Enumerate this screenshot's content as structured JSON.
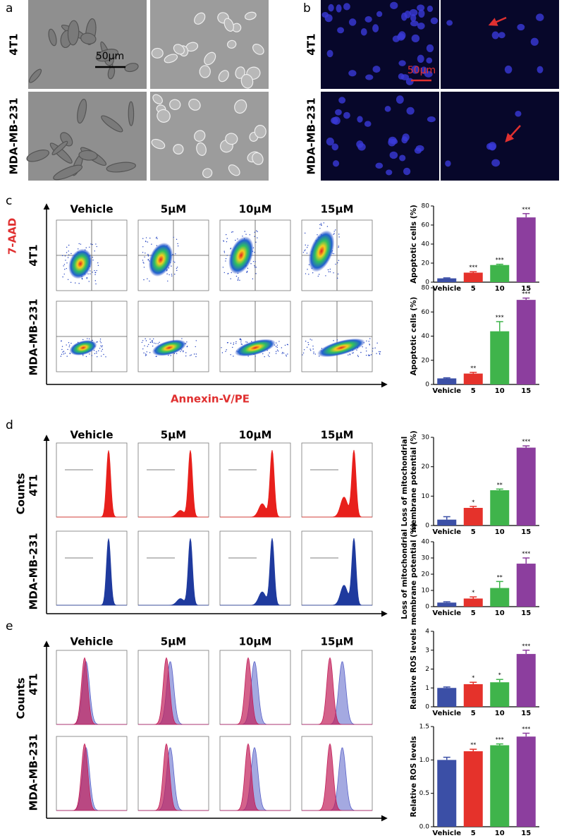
{
  "panels": {
    "a": {
      "label": "a",
      "rows": [
        "4T1",
        "MDA-MB-231"
      ],
      "scale_bar": "50μm"
    },
    "b": {
      "label": "b",
      "rows": [
        "4T1",
        "MDA-MB-231"
      ],
      "scale_bar": "50μm"
    },
    "c": {
      "label": "c",
      "columns": [
        "Vehicle",
        "5μM",
        "10μM",
        "15μM"
      ],
      "rows": [
        "4T1",
        "MDA-MB-231"
      ],
      "y_axis_label": "7-AAD",
      "x_axis_label": "Annexin-V/PE"
    },
    "d": {
      "label": "d",
      "columns": [
        "Vehicle",
        "5μM",
        "10μM",
        "15μM"
      ],
      "rows": [
        "4T1",
        "MDA-MB-231"
      ],
      "y_axis_label": "Counts"
    },
    "e": {
      "label": "e",
      "columns": [
        "Vehicle",
        "5μM",
        "10μM",
        "15μM"
      ],
      "rows": [
        "4T1",
        "MDA-MB-231"
      ],
      "y_axis_label": "Counts"
    }
  },
  "chart_data": [
    {
      "type": "bar",
      "y_label": [
        "Apoptotic cells (%)"
      ],
      "categories": [
        "Vehicle",
        "5",
        "10",
        "15"
      ],
      "values": [
        4,
        10,
        18,
        68
      ],
      "errors": [
        0.5,
        1,
        0.8,
        4
      ],
      "annotations": [
        null,
        "***",
        "***",
        "***"
      ],
      "colors": [
        "#3b4fa6",
        "#e5322b",
        "#3fb44b",
        "#8c3e9e"
      ],
      "ylim": [
        0,
        80
      ],
      "yticks": [
        0,
        20,
        40,
        60,
        80
      ]
    },
    {
      "type": "bar",
      "y_label": [
        "Apoptotic cells (%)"
      ],
      "categories": [
        "Vehicle",
        "5",
        "10",
        "15"
      ],
      "values": [
        5,
        9,
        44,
        70
      ],
      "errors": [
        0.5,
        1,
        8,
        1.5
      ],
      "annotations": [
        null,
        "**",
        "***",
        "***"
      ],
      "colors": [
        "#3b4fa6",
        "#e5322b",
        "#3fb44b",
        "#8c3e9e"
      ],
      "ylim": [
        0,
        80
      ],
      "yticks": [
        0,
        20,
        40,
        60,
        80
      ]
    },
    {
      "type": "bar",
      "y_label": [
        "Loss of mitochondrial",
        "membrane potential (%)"
      ],
      "categories": [
        "Vehicle",
        "5",
        "10",
        "15"
      ],
      "values": [
        2,
        6,
        12,
        26.5
      ],
      "errors": [
        1,
        0.5,
        0.4,
        0.6
      ],
      "annotations": [
        null,
        "*",
        "**",
        "***"
      ],
      "colors": [
        "#3b4fa6",
        "#e5322b",
        "#3fb44b",
        "#8c3e9e"
      ],
      "ylim": [
        0,
        30
      ],
      "yticks": [
        0,
        10,
        20,
        30
      ]
    },
    {
      "type": "bar",
      "y_label": [
        "Loss of mitochondrial",
        "membrane potential (%)"
      ],
      "categories": [
        "Vehicle",
        "5",
        "10",
        "15"
      ],
      "values": [
        2.5,
        5,
        11.5,
        26.5
      ],
      "errors": [
        0.5,
        1,
        4,
        3.5
      ],
      "annotations": [
        null,
        "*",
        "**",
        "***"
      ],
      "colors": [
        "#3b4fa6",
        "#e5322b",
        "#3fb44b",
        "#8c3e9e"
      ],
      "ylim": [
        0,
        40
      ],
      "yticks": [
        0,
        10,
        20,
        30,
        40
      ]
    },
    {
      "type": "bar",
      "y_label": [
        "Relative ROS levels"
      ],
      "categories": [
        "Vehicle",
        "5",
        "10",
        "15"
      ],
      "values": [
        1,
        1.2,
        1.3,
        2.8
      ],
      "errors": [
        0.05,
        0.1,
        0.15,
        0.2
      ],
      "annotations": [
        null,
        "*",
        "*",
        "***"
      ],
      "colors": [
        "#3b4fa6",
        "#e5322b",
        "#3fb44b",
        "#8c3e9e"
      ],
      "ylim": [
        0,
        4
      ],
      "yticks": [
        0,
        1,
        2,
        3,
        4
      ]
    },
    {
      "type": "bar",
      "y_label": [
        "Relative ROS levels"
      ],
      "categories": [
        "Vehicle",
        "5",
        "10",
        "15"
      ],
      "values": [
        1.0,
        1.13,
        1.22,
        1.35
      ],
      "errors": [
        0.04,
        0.03,
        0.02,
        0.05
      ],
      "annotations": [
        null,
        "**",
        "***",
        "***"
      ],
      "colors": [
        "#3b4fa6",
        "#e5322b",
        "#3fb44b",
        "#8c3e9e"
      ],
      "ylim": [
        0,
        1.5
      ],
      "yticks": [
        {
          "value": 0,
          "label": "0.0"
        },
        0.5,
        {
          "value": 1,
          "label": "1.0"
        },
        1.5
      ]
    }
  ]
}
